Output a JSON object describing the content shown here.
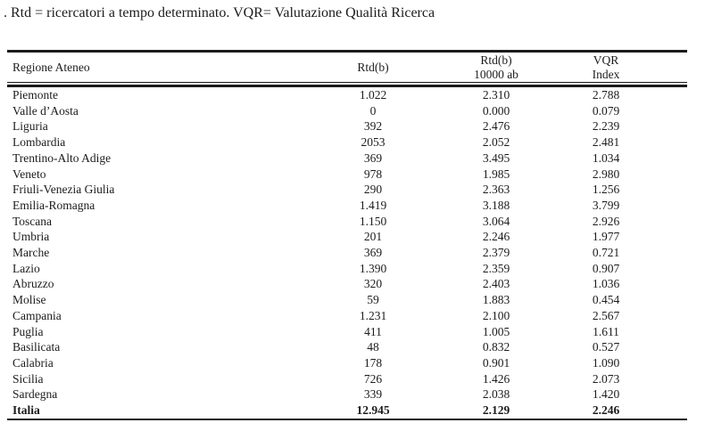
{
  "caption": ". Rtd = ricercatori a tempo determinato. VQR= Valutazione Qualità Ricerca",
  "colors": {
    "text": "#1c1c1c",
    "rule": "#1b1b1b",
    "background": "#ffffff"
  },
  "table": {
    "columns": [
      {
        "label": "Regione Ateneo",
        "label2": ""
      },
      {
        "label": "Rtd(b)",
        "label2": ""
      },
      {
        "label": "Rtd(b)",
        "label2": "10000 ab"
      },
      {
        "label": "VQR",
        "label2": "Index"
      }
    ],
    "rows": [
      [
        "Piemonte",
        "1.022",
        "2.310",
        "2.788"
      ],
      [
        "Valle d’Aosta",
        "0",
        "0.000",
        "0.079"
      ],
      [
        "Liguria",
        "392",
        "2.476",
        "2.239"
      ],
      [
        "Lombardia",
        "2053",
        "2.052",
        "2.481"
      ],
      [
        "Trentino-Alto Adige",
        "369",
        "3.495",
        "1.034"
      ],
      [
        "Veneto",
        "978",
        "1.985",
        "2.980"
      ],
      [
        "Friuli-Venezia Giulia",
        "290",
        "2.363",
        "1.256"
      ],
      [
        "Emilia-Romagna",
        "1.419",
        "3.188",
        "3.799"
      ],
      [
        "Toscana",
        "1.150",
        "3.064",
        "2.926"
      ],
      [
        "Umbria",
        "201",
        "2.246",
        "1.977"
      ],
      [
        "Marche",
        "369",
        "2.379",
        "0.721"
      ],
      [
        "Lazio",
        "1.390",
        "2.359",
        "0.907"
      ],
      [
        "Abruzzo",
        "320",
        "2.403",
        "1.036"
      ],
      [
        "Molise",
        "59",
        "1.883",
        "0.454"
      ],
      [
        "Campania",
        "1.231",
        "2.100",
        "2.567"
      ],
      [
        "Puglia",
        "411",
        "1.005",
        "1.611"
      ],
      [
        "Basilicata",
        "48",
        "0.832",
        "0.527"
      ],
      [
        "Calabria",
        "178",
        "0.901",
        "1.090"
      ],
      [
        "Sicilia",
        "726",
        "1.426",
        "2.073"
      ],
      [
        "Sardegna",
        "339",
        "2.038",
        "1.420"
      ]
    ],
    "total": [
      "Italia",
      "12.945",
      "2.129",
      "2.246"
    ]
  }
}
